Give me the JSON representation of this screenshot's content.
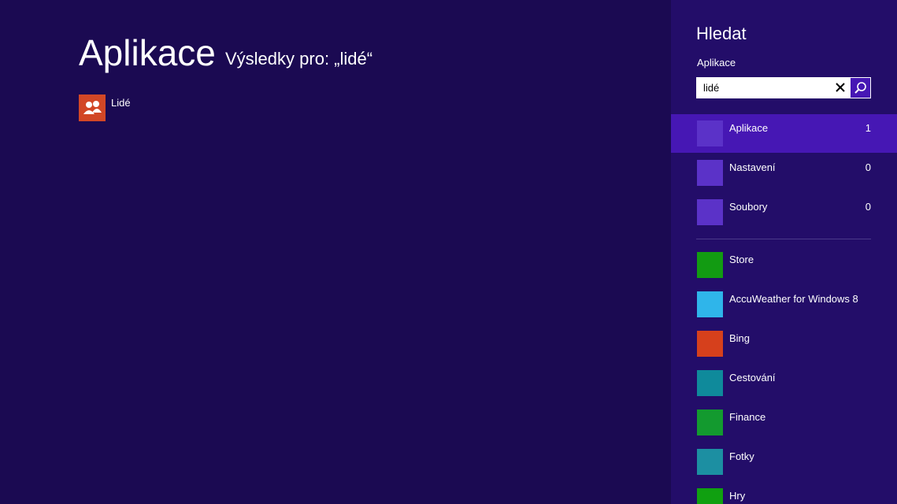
{
  "main": {
    "title": "Aplikace",
    "subtitle": "Výsledky pro: „lidé“",
    "results": [
      {
        "label": "Lidé"
      }
    ]
  },
  "search": {
    "title": "Hledat",
    "scope": "Aplikace",
    "query": "lidé",
    "categories": [
      {
        "label": "Aplikace",
        "count": 1
      },
      {
        "label": "Nastavení",
        "count": 0
      },
      {
        "label": "Soubory",
        "count": 0
      }
    ],
    "apps": [
      {
        "label": "Store"
      },
      {
        "label": "AccuWeather for Windows 8"
      },
      {
        "label": "Bing"
      },
      {
        "label": "Cestování"
      },
      {
        "label": "Finance"
      },
      {
        "label": "Fotky"
      },
      {
        "label": "Hry"
      }
    ]
  }
}
